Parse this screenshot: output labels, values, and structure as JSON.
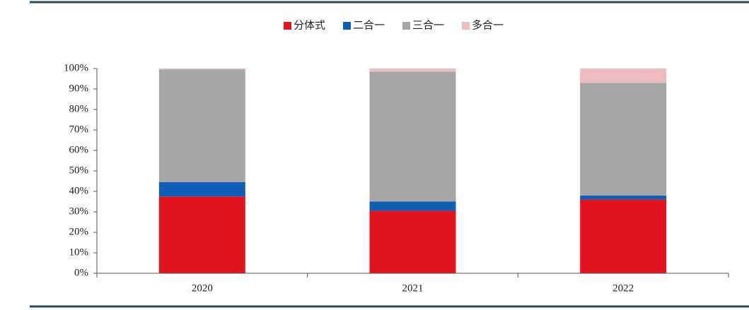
{
  "chart_data": {
    "type": "stacked_bar",
    "categories": [
      "2020",
      "2021",
      "2022"
    ],
    "series": [
      {
        "name": "分体式",
        "color": "#e3141e",
        "values": [
          37.5,
          30.5,
          36
        ]
      },
      {
        "name": "二合一",
        "color": "#0f5fb8",
        "values": [
          7,
          4.5,
          2
        ]
      },
      {
        "name": "三合一",
        "color": "#a6a6a6",
        "values": [
          55,
          63.5,
          55
        ]
      },
      {
        "name": "多合一",
        "color": "#ecbcbf",
        "values": [
          0.5,
          1.5,
          7
        ]
      }
    ],
    "ylim": [
      0,
      100
    ],
    "yticks": [
      {
        "value": 0,
        "label": "0%"
      },
      {
        "value": 10,
        "label": "10%"
      },
      {
        "value": 20,
        "label": "20%"
      },
      {
        "value": 30,
        "label": "30%"
      },
      {
        "value": 40,
        "label": "40%"
      },
      {
        "value": 50,
        "label": "50%"
      },
      {
        "value": 60,
        "label": "60%"
      },
      {
        "value": 70,
        "label": "70%"
      },
      {
        "value": 80,
        "label": "80%"
      },
      {
        "value": 90,
        "label": "90%"
      },
      {
        "value": 100,
        "label": "100%"
      }
    ],
    "grid": false,
    "legend": "top"
  }
}
